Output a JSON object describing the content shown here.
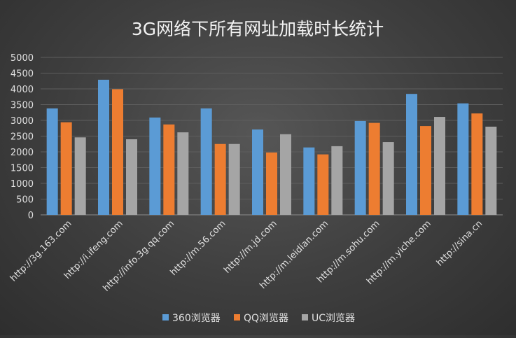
{
  "chart_data": {
    "type": "bar",
    "title": "3G网络下所有网址加载时长统计",
    "xlabel": "",
    "ylabel": "",
    "categories": [
      "http://3g.163.com",
      "http://i.ifeng.com",
      "http://info.3g.qq.com",
      "http://m.56.com",
      "http://m.jd.com",
      "http://m.leidian.com",
      "http://m.sohu.com",
      "http://m.yiche.com",
      "http://sina.cn"
    ],
    "series": [
      {
        "name": "360浏览器",
        "color": "#5b9bd5",
        "values": [
          3380,
          4290,
          3090,
          3380,
          2710,
          2140,
          2980,
          3840,
          3540
        ]
      },
      {
        "name": "QQ浏览器",
        "color": "#ed7d31",
        "values": [
          2940,
          3990,
          2870,
          2250,
          1980,
          1920,
          2920,
          2820,
          3220
        ]
      },
      {
        "name": "UC浏览器",
        "color": "#a5a5a5",
        "values": [
          2460,
          2400,
          2620,
          2250,
          2560,
          2180,
          2310,
          3110,
          2800
        ]
      }
    ],
    "ylim": [
      0,
      5000
    ],
    "yticks": [
      0,
      500,
      1000,
      1500,
      2000,
      2500,
      3000,
      3500,
      4000,
      4500,
      5000
    ],
    "grid": true,
    "legend": "bottom"
  }
}
